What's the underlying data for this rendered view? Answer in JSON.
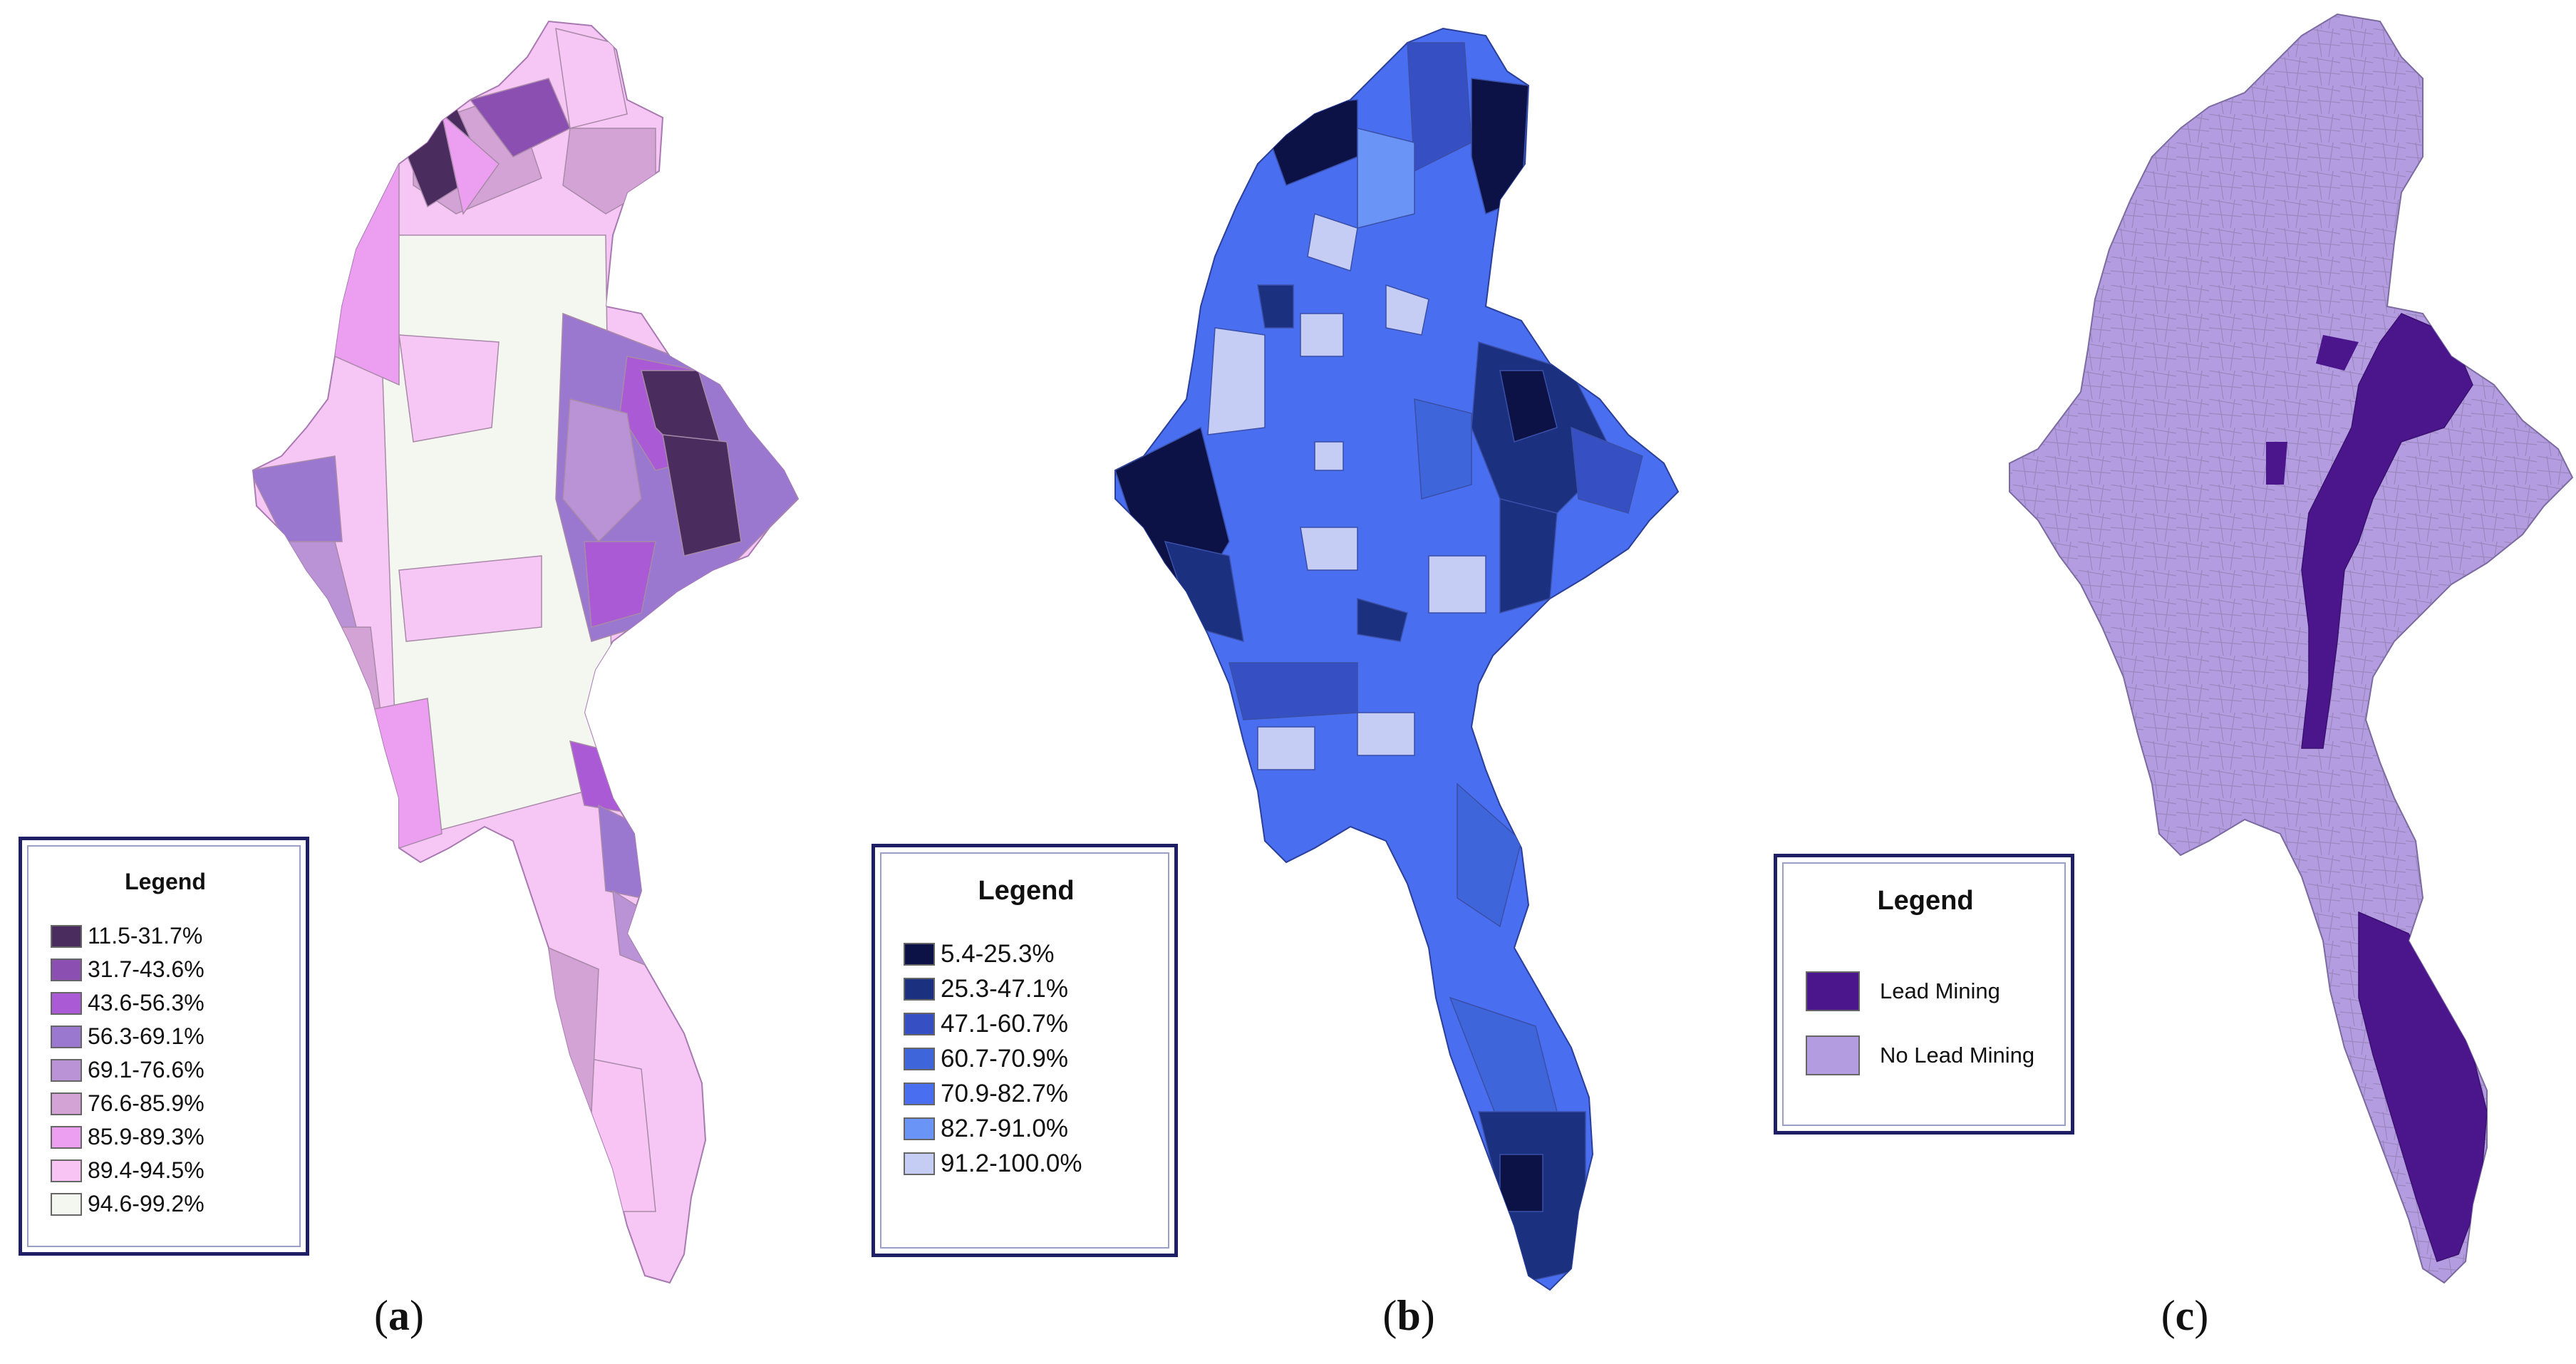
{
  "panels": [
    {
      "id": "a",
      "caption_label": "(a)",
      "caption_letter": "a",
      "legend_title": "Legend",
      "legend": [
        {
          "label": "11.5-31.7%",
          "color": "#4a2c5e"
        },
        {
          "label": "31.7-43.6%",
          "color": "#8a4fb0"
        },
        {
          "label": "43.6-56.3%",
          "color": "#a95ad4"
        },
        {
          "label": "56.3-69.1%",
          "color": "#9b78d0"
        },
        {
          "label": "69.1-76.6%",
          "color": "#b993d6"
        },
        {
          "label": "76.6-85.9%",
          "color": "#d3a3d6"
        },
        {
          "label": "85.9-89.3%",
          "color": "#ec9ef0"
        },
        {
          "label": "89.4-94.5%",
          "color": "#f7c4f4"
        },
        {
          "label": "94.6-99.2%",
          "color": "#f4f7f0"
        }
      ]
    },
    {
      "id": "b",
      "caption_label": "(b)",
      "caption_letter": "b",
      "legend_title": "Legend",
      "legend": [
        {
          "label": "5.4-25.3%",
          "color": "#0c1245"
        },
        {
          "label": "25.3-47.1%",
          "color": "#1c3080"
        },
        {
          "label": "47.1-60.7%",
          "color": "#3650c4"
        },
        {
          "label": "60.7-70.9%",
          "color": "#3e66da"
        },
        {
          "label": "70.9-82.7%",
          "color": "#4a6ef0"
        },
        {
          "label": "82.7-91.0%",
          "color": "#6a95f7"
        },
        {
          "label": "91.2-100.0%",
          "color": "#c5cdf4"
        }
      ]
    },
    {
      "id": "c",
      "caption_label": "(c)",
      "caption_letter": "c",
      "legend_title": "Legend",
      "legend": [
        {
          "label": "Lead Mining",
          "color": "#4b168c"
        },
        {
          "label": "No Lead Mining",
          "color": "#b39ce0"
        }
      ]
    }
  ]
}
